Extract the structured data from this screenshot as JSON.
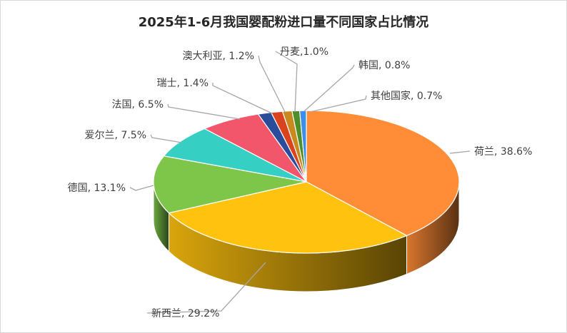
{
  "chart_data": {
    "type": "pie",
    "title": "2025年1-6月我国婴配粉进口量不同国家占比情况",
    "label_separator": ", ",
    "slices": [
      {
        "name": "荷兰",
        "value": 38.6,
        "label": "38.6%",
        "color": "#ff8c36"
      },
      {
        "name": "新西兰",
        "value": 29.2,
        "label": "29.2%",
        "color": "#ffc20e"
      },
      {
        "name": "德国",
        "value": 13.1,
        "label": "13.1%",
        "color": "#7ec64a"
      },
      {
        "name": "爱尔兰",
        "value": 7.5,
        "label": "7.5%",
        "color": "#36cfc4"
      },
      {
        "name": "法国",
        "value": 6.5,
        "label": "6.5%",
        "color": "#f2566a"
      },
      {
        "name": "瑞士",
        "value": 1.4,
        "label": "1.4%",
        "color": "#2b4b9b"
      },
      {
        "name": "澳大利亚",
        "value": 1.2,
        "label": "1.2%",
        "color": "#d9441e"
      },
      {
        "name": "丹麦",
        "value": 1.0,
        "label": "1.0%",
        "color": "#c8891e",
        "separator": ","
      },
      {
        "name": "韩国",
        "value": 0.8,
        "label": "0.8%",
        "color": "#4f8f2a"
      },
      {
        "name": "其他国家",
        "value": 0.7,
        "label": "0.7%",
        "color": "#3d8ee8"
      }
    ],
    "style": "3d-pie",
    "legend": "none"
  }
}
